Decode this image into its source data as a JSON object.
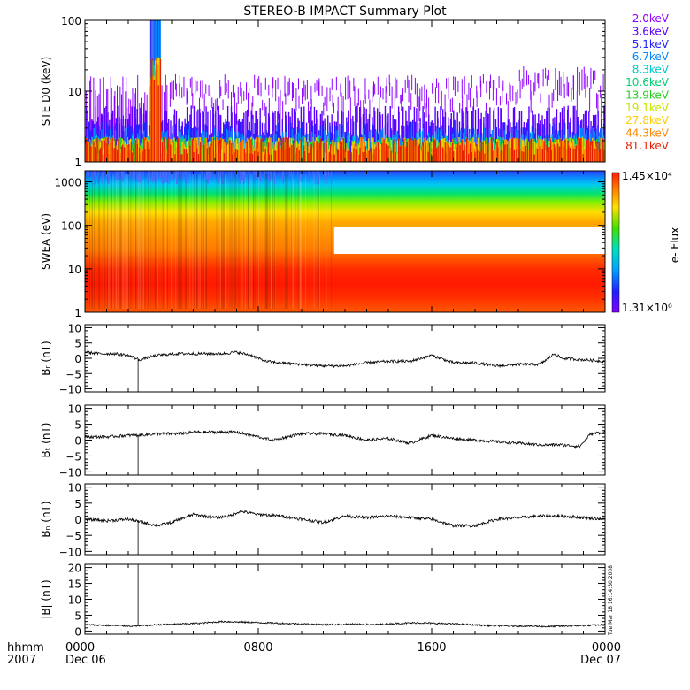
{
  "title": "STEREO-B IMPACT Summary Plot",
  "footer": {
    "time_label": "hhmm",
    "year_label": "2007",
    "stamp": "Tue Mar 18 16:14:30 2008",
    "x_ticks": [
      {
        "t": 0,
        "top": "0000",
        "bottom": "Dec 06"
      },
      {
        "t": 480,
        "top": "0800",
        "bottom": ""
      },
      {
        "t": 960,
        "top": "1600",
        "bottom": ""
      },
      {
        "t": 1440,
        "top": "0000",
        "bottom": "Dec 07"
      }
    ]
  },
  "colors": {
    "line": "#000000",
    "plasma_purple": "#7f00ff",
    "white": "#ffffff"
  },
  "chart_data": [
    {
      "id": "ste",
      "type": "line",
      "ylabel": "STE D0 (keV)",
      "yscale": "log",
      "ylim": [
        1,
        100
      ],
      "xlim_minutes": [
        0,
        1440
      ],
      "y_ticks": [
        {
          "v": 1,
          "label": "1"
        },
        {
          "v": 10,
          "label": "10"
        },
        {
          "v": 100,
          "label": "100"
        }
      ],
      "series": [
        {
          "name": "2.0keV",
          "color": "#8f00ff",
          "typical": 12,
          "max": 22
        },
        {
          "name": "3.6keV",
          "color": "#5a00ff",
          "typical": 5,
          "max": 8
        },
        {
          "name": "5.1keV",
          "color": "#2323ff",
          "typical": 3,
          "max": 4
        },
        {
          "name": "6.7keV",
          "color": "#0088ff",
          "typical": 2.4,
          "max": 3
        },
        {
          "name": "8.3keV",
          "color": "#00cccc",
          "typical": 1.9,
          "max": 2.1
        },
        {
          "name": "10.6keV",
          "color": "#00d070",
          "typical": 1.8,
          "max": 1.9
        },
        {
          "name": "13.9keV",
          "color": "#22d022",
          "typical": 1.8,
          "max": 1.9
        },
        {
          "name": "19.1keV",
          "color": "#c8e600",
          "typical": 1.8,
          "max": 1.9
        },
        {
          "name": "27.8keV",
          "color": "#ffcc00",
          "typical": 1.8,
          "max": 1.9
        },
        {
          "name": "44.3keV",
          "color": "#ff8800",
          "typical": 1.8,
          "max": 1.9
        },
        {
          "name": "81.1keV",
          "color": "#e82000",
          "typical": 1.8,
          "max": 1.9
        }
      ]
    },
    {
      "id": "swea",
      "type": "heatmap",
      "ylabel": "SWEA (eV)",
      "yscale": "log",
      "ylim": [
        1,
        1800
      ],
      "xlim_minutes": [
        0,
        1440
      ],
      "y_ticks": [
        {
          "v": 1,
          "label": "1"
        },
        {
          "v": 10,
          "label": "10"
        },
        {
          "v": 100,
          "label": "100"
        },
        {
          "v": 1000,
          "label": "1000"
        }
      ],
      "colorbar": {
        "label": "e- Flux",
        "min_label": "1.31×10⁰",
        "max_label": "1.45×10⁴"
      },
      "data_gap": {
        "t_start": 690,
        "t_end": 1440,
        "e_low": 22,
        "e_high": 90
      }
    },
    {
      "id": "br",
      "type": "line",
      "ylabel": "Bᵣ (nT)",
      "ylim": [
        -11,
        11
      ],
      "y_ticks": [
        {
          "v": -10,
          "label": "−10"
        },
        {
          "v": -5,
          "label": "−5"
        },
        {
          "v": 0,
          "label": "0"
        },
        {
          "v": 5,
          "label": "5"
        },
        {
          "v": 10,
          "label": "10"
        }
      ],
      "t": [
        0,
        40,
        80,
        120,
        150,
        200,
        260,
        320,
        380,
        420,
        460,
        500,
        540,
        600,
        660,
        720,
        780,
        840,
        900,
        960,
        1020,
        1080,
        1140,
        1200,
        1260,
        1300,
        1320,
        1380,
        1440
      ],
      "values": [
        2,
        1.5,
        1.5,
        1,
        -0.5,
        1,
        1.5,
        1.5,
        1.5,
        2,
        1,
        -1,
        -1.5,
        -2,
        -2.5,
        -2.5,
        -1.5,
        -1,
        -1,
        1,
        -1.5,
        -1.5,
        -2.5,
        -2,
        -2,
        1.5,
        0,
        -0.5,
        -1
      ],
      "spike": {
        "t": 147,
        "value": -11
      }
    },
    {
      "id": "bt",
      "type": "line",
      "ylabel": "Bₜ (nT)",
      "ylim": [
        -11,
        11
      ],
      "y_ticks": [
        {
          "v": -10,
          "label": "−10"
        },
        {
          "v": -5,
          "label": "−5"
        },
        {
          "v": 0,
          "label": "0"
        },
        {
          "v": 5,
          "label": "5"
        },
        {
          "v": 10,
          "label": "10"
        }
      ],
      "t": [
        0,
        60,
        120,
        147,
        200,
        260,
        300,
        380,
        420,
        460,
        520,
        600,
        660,
        720,
        780,
        840,
        900,
        960,
        1020,
        1080,
        1140,
        1200,
        1260,
        1320,
        1370,
        1400,
        1440
      ],
      "values": [
        1,
        1,
        1.5,
        1.5,
        2,
        2,
        2.5,
        2.5,
        2.5,
        1.5,
        0,
        2,
        2,
        1.5,
        0,
        0.5,
        -1,
        1.5,
        0.5,
        0,
        -0.5,
        -1,
        -1.5,
        -1.5,
        -2,
        2,
        2.5
      ],
      "spike": {
        "t": 147,
        "value": -11
      }
    },
    {
      "id": "bn",
      "type": "line",
      "ylabel": "Bₙ (nT)",
      "ylim": [
        -11,
        11
      ],
      "y_ticks": [
        {
          "v": -10,
          "label": "−10"
        },
        {
          "v": -5,
          "label": "−5"
        },
        {
          "v": 0,
          "label": "0"
        },
        {
          "v": 5,
          "label": "5"
        },
        {
          "v": 10,
          "label": "10"
        }
      ],
      "t": [
        0,
        60,
        120,
        160,
        200,
        240,
        300,
        360,
        400,
        430,
        480,
        540,
        600,
        660,
        720,
        780,
        840,
        900,
        960,
        1020,
        1080,
        1140,
        1200,
        1260,
        1320,
        1380,
        1440
      ],
      "values": [
        0,
        -0.5,
        0,
        -1,
        -2,
        -1,
        1.5,
        0.5,
        1,
        2.5,
        1.5,
        1,
        0,
        -1,
        1,
        0.5,
        1,
        0.5,
        0,
        -2,
        -2,
        0,
        0.5,
        1,
        1,
        0.5,
        0
      ],
      "spike": {
        "t": 147,
        "value": -11
      }
    },
    {
      "id": "bmag",
      "type": "line",
      "ylabel": "|B| (nT)",
      "ylim": [
        -1,
        21
      ],
      "y_ticks": [
        {
          "v": 0,
          "label": "0"
        },
        {
          "v": 5,
          "label": "5"
        },
        {
          "v": 10,
          "label": "10"
        },
        {
          "v": 15,
          "label": "15"
        },
        {
          "v": 20,
          "label": "20"
        }
      ],
      "t": [
        0,
        60,
        120,
        147,
        200,
        260,
        320,
        380,
        440,
        500,
        560,
        620,
        680,
        740,
        800,
        860,
        920,
        980,
        1040,
        1100,
        1160,
        1220,
        1280,
        1340,
        1400,
        1440
      ],
      "values": [
        2,
        1.8,
        1.6,
        1.6,
        2,
        2.2,
        2.5,
        3,
        2.8,
        2.6,
        2.4,
        2.2,
        2,
        2.2,
        2,
        2.4,
        2.6,
        2.4,
        2.2,
        1.8,
        1.6,
        1.6,
        1.4,
        1.6,
        1.8,
        2
      ],
      "spike": {
        "t": 147,
        "value": 21
      }
    }
  ]
}
